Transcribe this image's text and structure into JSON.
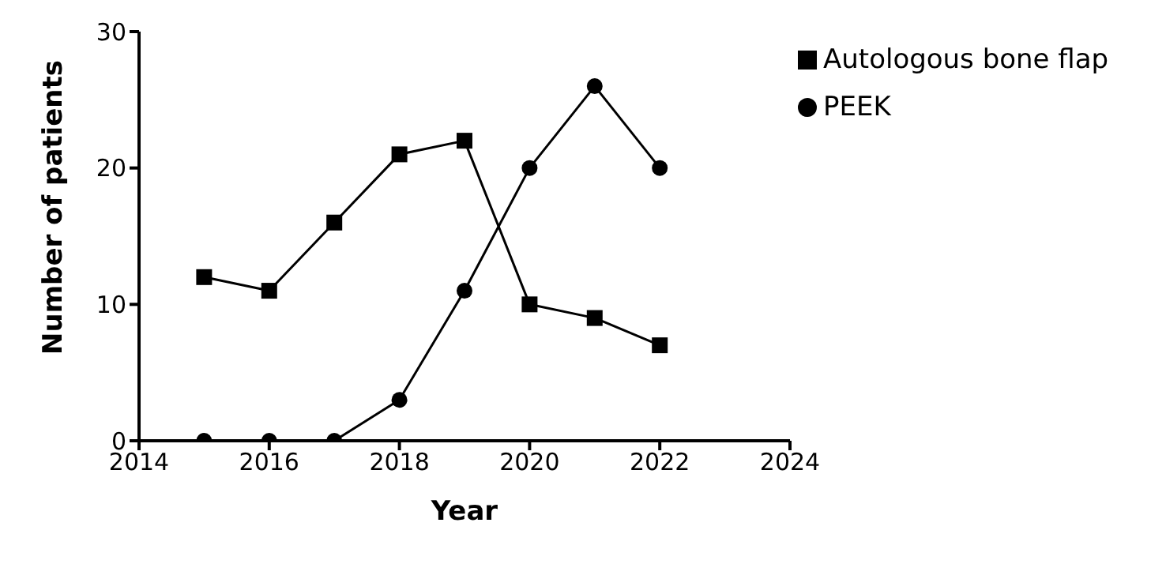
{
  "chart_data": {
    "type": "line",
    "xlabel": "Year",
    "ylabel": "Number of patients",
    "x": [
      2015,
      2016,
      2017,
      2018,
      2019,
      2020,
      2021,
      2022
    ],
    "series": [
      {
        "name": "PEEK",
        "color": "#000000",
        "marker": "circle",
        "values": [
          0,
          0,
          0,
          3,
          11,
          20,
          26,
          20
        ]
      },
      {
        "name": "Autologous bone flap",
        "color": "#000000",
        "marker": "square",
        "values": [
          12,
          11,
          16,
          21,
          22,
          10,
          9,
          7
        ]
      }
    ],
    "xlim": [
      2014,
      2024
    ],
    "xticks": [
      2014,
      2016,
      2018,
      2020,
      2022,
      2024
    ],
    "ylim": [
      0,
      30
    ],
    "yticks": [
      0,
      10,
      20,
      30
    ],
    "grid": false,
    "legend": "top right",
    "line_style": "solid"
  }
}
